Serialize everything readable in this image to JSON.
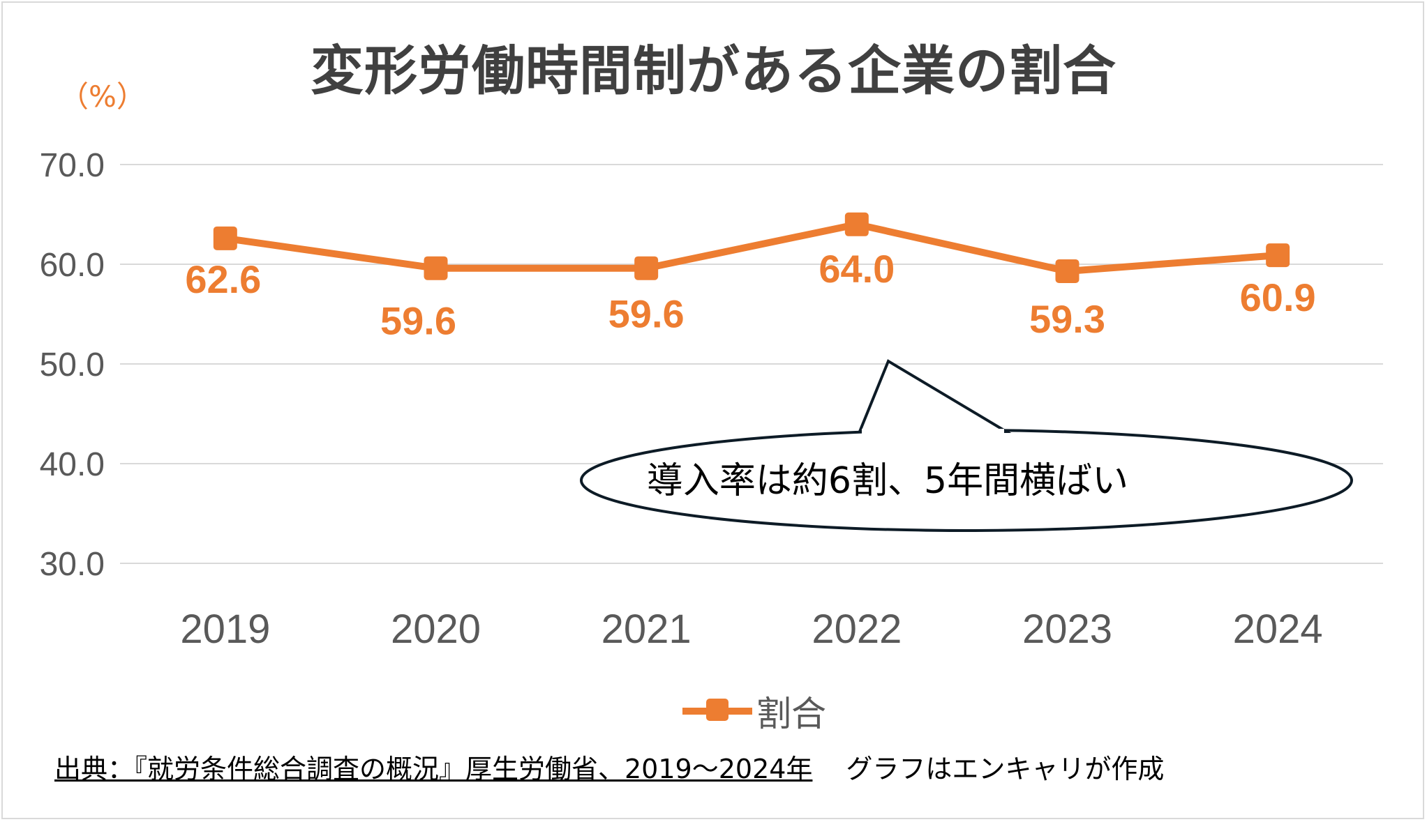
{
  "title": "変形労働時間制がある企業の割合",
  "unit": "（%）",
  "chart_data": {
    "type": "line",
    "categories": [
      "2019",
      "2020",
      "2021",
      "2022",
      "2023",
      "2024"
    ],
    "series": [
      {
        "name": "割合",
        "values": [
          62.6,
          59.6,
          59.6,
          64.0,
          59.3,
          60.9
        ],
        "color": "#ed7d31"
      }
    ],
    "data_labels": [
      "62.6",
      "59.6",
      "59.6",
      "64.0",
      "59.3",
      "60.9"
    ],
    "ylim": [
      30,
      70
    ],
    "yticks": [
      "70.0",
      "60.0",
      "50.0",
      "40.0",
      "30.0"
    ],
    "grid": true,
    "legend_position": "bottom",
    "annotation": "導入率は約6割、5年間横ばい"
  },
  "legend": {
    "label": "割合"
  },
  "footer": {
    "source": "出典：『就労条件総合調査の概況』厚生労働省、2019〜2024年",
    "credit": "グラフはエンキャリが作成"
  }
}
